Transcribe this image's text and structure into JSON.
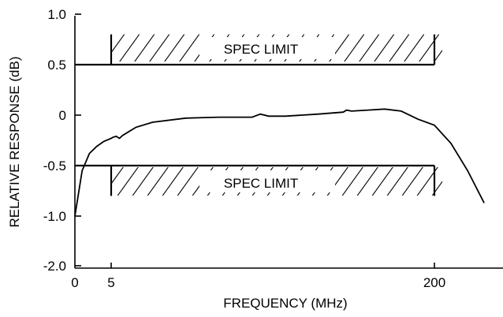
{
  "chart_data": {
    "type": "line",
    "title": "",
    "xlabel": "FREQUENCY (MHz)",
    "ylabel": "RELATIVE RESPONSE (dB)",
    "x_ticks": [
      {
        "value": 0,
        "label": "0"
      },
      {
        "value": 5,
        "label": "5"
      },
      {
        "value": 200,
        "label": "200"
      }
    ],
    "y_ticks": [
      {
        "value": 1.0,
        "label": "1.0"
      },
      {
        "value": 0.5,
        "label": "0.5"
      },
      {
        "value": 0,
        "label": "0"
      },
      {
        "value": -0.5,
        "label": "-0.5"
      },
      {
        "value": -1.0,
        "label": "-1.0"
      },
      {
        "value": -2.0,
        "label": "-2.0"
      }
    ],
    "xlim": [
      0,
      240
    ],
    "grid": false,
    "spec_limits": [
      {
        "label": "SPEC LIMIT",
        "value": 0.5,
        "x_range": [
          5,
          200
        ],
        "hatch_to": 0.8
      },
      {
        "label": "SPEC LIMIT",
        "value": -0.5,
        "x_range": [
          5,
          200
        ],
        "hatch_to": -0.8
      }
    ],
    "series": [
      {
        "x": [
          0,
          1,
          2,
          3,
          4,
          5,
          6,
          8,
          10,
          12,
          15,
          20,
          30,
          50,
          70,
          90,
          95,
          100,
          110,
          130,
          145,
          147,
          150,
          160,
          170,
          180,
          190,
          200,
          210,
          220,
          230
        ],
        "y": [
          -1.0,
          -0.55,
          -0.38,
          -0.31,
          -0.26,
          -0.23,
          -0.22,
          -0.21,
          -0.23,
          -0.2,
          -0.17,
          -0.12,
          -0.07,
          -0.03,
          -0.02,
          -0.02,
          0.01,
          -0.01,
          -0.01,
          0.01,
          0.03,
          0.05,
          0.04,
          0.05,
          0.06,
          0.04,
          -0.04,
          -0.1,
          -0.28,
          -0.55,
          -0.87
        ]
      }
    ]
  }
}
